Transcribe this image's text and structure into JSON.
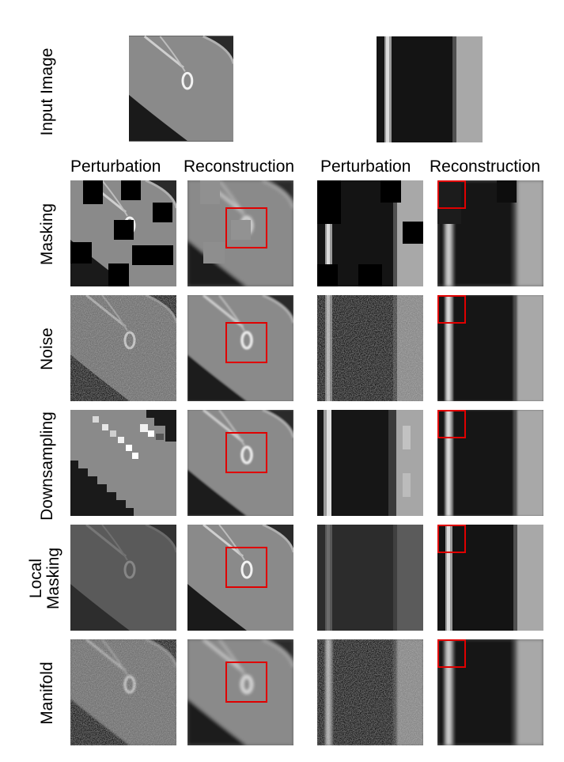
{
  "rows": {
    "input": "Input Image",
    "masking": "Masking",
    "noise": "Noise",
    "downsampling": "Downsampling",
    "local_masking_line1": "Local",
    "local_masking_line2": "Masking",
    "manifold": "Manifold"
  },
  "columns": {
    "perturbation_left": "Perturbation",
    "reconstruction_left": "Reconstruction",
    "perturbation_right": "Perturbation",
    "reconstruction_right": "Reconstruction"
  },
  "colors": {
    "highlight_box": "#e00000",
    "tissue_gray": "#8c8c8c",
    "background_dark": "#141414"
  }
}
